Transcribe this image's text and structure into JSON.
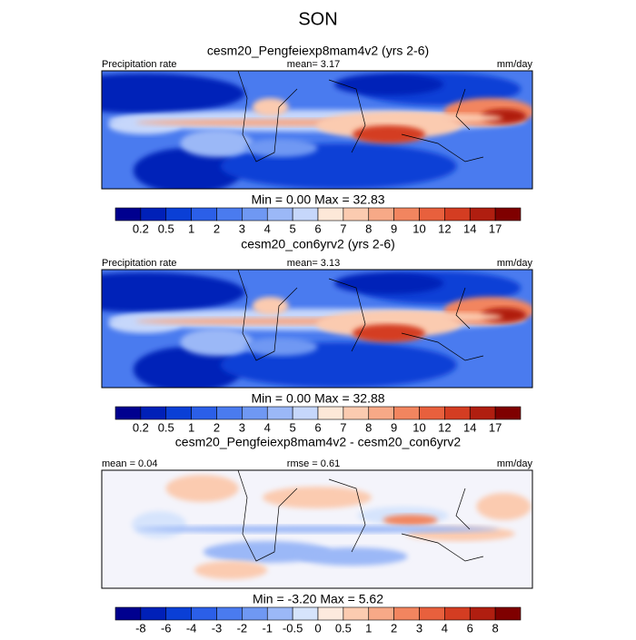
{
  "title": "SON",
  "panels": [
    {
      "subtitle": "cesm20_Pengfeiexp8mam4v2 (yrs 2-6)",
      "left": "Precipitation rate",
      "center": "mean=   3.17",
      "right": "mm/day",
      "minmax": "Min =   0.00 Max =  32.83",
      "colorbar": {
        "labels": [
          "0.2",
          "0.5",
          "1",
          "2",
          "3",
          "4",
          "5",
          "6",
          "7",
          "8",
          "9",
          "10",
          "12",
          "14",
          "17"
        ],
        "colors": [
          "#00008f",
          "#0020b8",
          "#0a3fd6",
          "#2b5fe8",
          "#4a7bef",
          "#6f98f3",
          "#9bb8f7",
          "#c6d7fb",
          "#fde8d8",
          "#fbcbb0",
          "#f7a987",
          "#f2855f",
          "#e8603d",
          "#d43d22",
          "#b01e10",
          "#7f0000"
        ]
      }
    },
    {
      "subtitle": "cesm20_con6yrv2 (yrs 2-6)",
      "left": "Precipitation rate",
      "center": "mean=   3.13",
      "right": "mm/day",
      "minmax": "Min =   0.00 Max =  32.88",
      "colorbar": {
        "labels": [
          "0.2",
          "0.5",
          "1",
          "2",
          "3",
          "4",
          "5",
          "6",
          "7",
          "8",
          "9",
          "10",
          "12",
          "14",
          "17"
        ],
        "colors": [
          "#00008f",
          "#0020b8",
          "#0a3fd6",
          "#2b5fe8",
          "#4a7bef",
          "#6f98f3",
          "#9bb8f7",
          "#c6d7fb",
          "#fde8d8",
          "#fbcbb0",
          "#f7a987",
          "#f2855f",
          "#e8603d",
          "#d43d22",
          "#b01e10",
          "#7f0000"
        ]
      }
    },
    {
      "subtitle": "cesm20_Pengfeiexp8mam4v2 - cesm20_con6yrv2",
      "left": "mean =   0.04",
      "center": "rmse =   0.61",
      "right": "mm/day",
      "minmax": "Min =  -3.20 Max =   5.62",
      "colorbar": {
        "labels": [
          "-8",
          "-6",
          "-4",
          "-3",
          "-2",
          "-1",
          "-0.5",
          "0",
          "0.5",
          "1",
          "2",
          "3",
          "4",
          "6",
          "8"
        ],
        "colors": [
          "#00008f",
          "#0020b8",
          "#0a3fd6",
          "#2b5fe8",
          "#4a7bef",
          "#6f98f3",
          "#9bb8f7",
          "#d6e4fc",
          "#fdeade",
          "#fbcbb0",
          "#f7a987",
          "#f2855f",
          "#e8603d",
          "#d43d22",
          "#b01e10",
          "#7f0000"
        ]
      }
    }
  ]
}
